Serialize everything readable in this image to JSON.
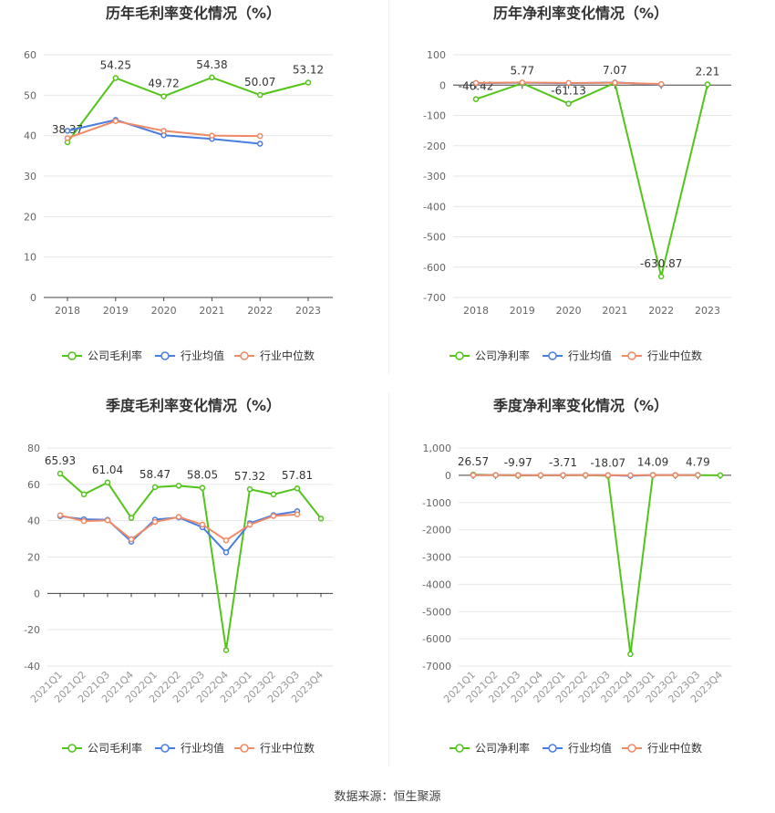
{
  "source_label": "数据来源：恒生聚源",
  "colors": {
    "company": "#52c41a",
    "industry_avg": "#4a7de0",
    "industry_median": "#f08a67"
  },
  "chart_data": [
    {
      "type": "line",
      "title": "历年毛利率变化情况（%）",
      "x": [
        "2018",
        "2019",
        "2020",
        "2021",
        "2022",
        "2023"
      ],
      "ylim": [
        0,
        60
      ],
      "yticks": [
        0,
        10,
        20,
        30,
        40,
        50,
        60
      ],
      "ytick_labels": [
        "0",
        "10",
        "20",
        "30",
        "40",
        "50",
        "60"
      ],
      "rotate_x": false,
      "series": [
        {
          "name": "公司毛利率",
          "values": [
            38.37,
            54.25,
            49.72,
            54.38,
            50.07,
            53.12
          ],
          "labels": [
            "38.37",
            "54.25",
            "49.72",
            "54.38",
            "50.07",
            "53.12"
          ]
        },
        {
          "name": "行业均值",
          "values": [
            41.2,
            43.9,
            40.1,
            39.2,
            38.0,
            null
          ]
        },
        {
          "name": "行业中位数",
          "values": [
            39.4,
            43.6,
            41.2,
            40.0,
            39.9,
            null
          ]
        }
      ],
      "legend": "bottom"
    },
    {
      "type": "line",
      "title": "历年净利率变化情况（%）",
      "x": [
        "2018",
        "2019",
        "2020",
        "2021",
        "2022",
        "2023"
      ],
      "ylim": [
        -700,
        100
      ],
      "yticks": [
        -700,
        -600,
        -500,
        -400,
        -300,
        -200,
        -100,
        0,
        100
      ],
      "ytick_labels": [
        "-700",
        "-600",
        "-500",
        "-400",
        "-300",
        "-200",
        "-100",
        "0",
        "100"
      ],
      "rotate_x": false,
      "series": [
        {
          "name": "公司净利率",
          "values": [
            -46.42,
            5.77,
            -61.13,
            7.07,
            -630.87,
            2.21
          ],
          "labels": [
            "-46.42",
            "5.77",
            "-61.13",
            "7.07",
            "-630.87",
            "2.21"
          ]
        },
        {
          "name": "行业均值",
          "values": [
            6.5,
            8.0,
            6.0,
            8.5,
            2.0,
            null
          ]
        },
        {
          "name": "行业中位数",
          "values": [
            7.0,
            8.5,
            7.0,
            8.0,
            3.5,
            null
          ]
        }
      ],
      "legend": "bottom"
    },
    {
      "type": "line",
      "title": "季度毛利率变化情况（%）",
      "x": [
        "2021Q1",
        "2021Q2",
        "2021Q3",
        "2021Q4",
        "2022Q1",
        "2022Q2",
        "2022Q3",
        "2022Q4",
        "2023Q1",
        "2023Q2",
        "2023Q3",
        "2023Q4"
      ],
      "ylim": [
        -40,
        80
      ],
      "yticks": [
        -40,
        -20,
        0,
        20,
        40,
        60,
        80
      ],
      "ytick_labels": [
        "-40",
        "-20",
        "0",
        "20",
        "40",
        "60",
        "80"
      ],
      "rotate_x": true,
      "series": [
        {
          "name": "公司毛利率",
          "values": [
            65.93,
            54.5,
            61.04,
            41.5,
            58.47,
            59.2,
            58.05,
            -31.2,
            57.32,
            54.5,
            57.81,
            41.2
          ],
          "labels": [
            "65.93",
            "",
            "61.04",
            "",
            "58.47",
            "",
            "58.05",
            "",
            "57.32",
            "",
            "57.81",
            ""
          ]
        },
        {
          "name": "行业均值",
          "values": [
            42.5,
            40.8,
            40.5,
            28.5,
            40.6,
            41.8,
            36.4,
            22.6,
            38.6,
            43.1,
            45.2,
            null
          ]
        },
        {
          "name": "行业中位数",
          "values": [
            43.0,
            39.8,
            40.2,
            29.8,
            39.3,
            42.1,
            37.9,
            29.2,
            37.8,
            42.6,
            43.5,
            null
          ]
        }
      ],
      "legend": "bottom"
    },
    {
      "type": "line",
      "title": "季度净利率变化情况（%）",
      "x": [
        "2021Q1",
        "2021Q2",
        "2021Q3",
        "2021Q4",
        "2022Q1",
        "2022Q2",
        "2022Q3",
        "2022Q4",
        "2023Q1",
        "2023Q2",
        "2023Q3",
        "2023Q4"
      ],
      "ylim": [
        -7000,
        1000
      ],
      "yticks": [
        -7000,
        -6000,
        -5000,
        -4000,
        -3000,
        -2000,
        -1000,
        0,
        1000
      ],
      "ytick_labels": [
        "-7000",
        "-6000",
        "-5000",
        "-4000",
        "-3000",
        "-2000",
        "-1000",
        "0",
        "1,000"
      ],
      "rotate_x": true,
      "series": [
        {
          "name": "公司净利率",
          "values": [
            26.57,
            10,
            -9.97,
            -5,
            -3.71,
            5,
            -18.07,
            -6560,
            14.09,
            5,
            4.79,
            0
          ],
          "labels": [
            "26.57",
            "",
            "-9.97",
            "",
            "-3.71",
            "",
            "-18.07",
            "",
            "14.09",
            "",
            "4.79",
            ""
          ]
        },
        {
          "name": "行业均值",
          "values": [
            5,
            8,
            6,
            2,
            6,
            7,
            5,
            -20,
            8,
            9,
            9,
            null
          ]
        },
        {
          "name": "行业中位数",
          "values": [
            6,
            7,
            6,
            3,
            6,
            8,
            5,
            0,
            7,
            8,
            8,
            null
          ]
        }
      ],
      "legend": "bottom"
    }
  ]
}
